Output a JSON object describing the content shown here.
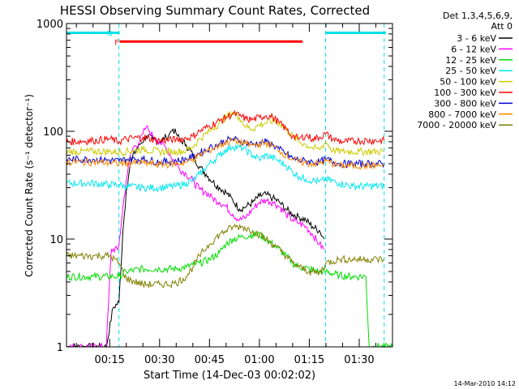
{
  "chart_data": {
    "type": "line",
    "title": "HESSI Observing Summary Count Rates, Corrected",
    "xlabel": "Start Time (14-Dec-03 00:02:02)",
    "ylabel": "Corrected Count Rate (s⁻¹ detector⁻¹)",
    "y_scale": "log",
    "ylim": [
      1,
      1000
    ],
    "xlim_minutes": [
      2.03,
      100
    ],
    "x_ticks": [
      {
        "label": "00:15",
        "value": 15
      },
      {
        "label": "00:30",
        "value": 30
      },
      {
        "label": "00:45",
        "value": 45
      },
      {
        "label": "01:00",
        "value": 60
      },
      {
        "label": "01:15",
        "value": 75
      },
      {
        "label": "01:30",
        "value": 90
      }
    ],
    "y_ticks": [
      {
        "label": "1",
        "value": 1
      },
      {
        "label": "10",
        "value": 10
      },
      {
        "label": "100",
        "value": 100
      },
      {
        "label": "1000",
        "value": 1000
      }
    ],
    "legend_header": [
      "Det 1,3,4,5,6,9,",
      "Att 0"
    ],
    "legend_position": "right",
    "grid": false,
    "timestamp": "14-Mar-2010 14:12",
    "flag_bars": [
      {
        "label": "",
        "color": "#00e0e8",
        "y": 820,
        "x": [
          2.03,
          16.0
        ]
      },
      {
        "label": "N",
        "color": "#00e0e8",
        "y": 820,
        "x": [
          16.0,
          18.0
        ]
      },
      {
        "label": "F",
        "color": "#ff0000",
        "y": 680,
        "x": [
          18.0,
          73.0
        ]
      },
      {
        "label": "",
        "color": "#00e0e8",
        "y": 820,
        "x": [
          80.0,
          98.0
        ]
      }
    ],
    "night_markers_minutes": [
      17.8,
      79.9,
      97.5
    ],
    "series": [
      {
        "name": "3 - 6 keV",
        "color": "#000000",
        "x": [
          2,
          14,
          16,
          17.8,
          19,
          20,
          21,
          22,
          24,
          26,
          28,
          30,
          32,
          33,
          34,
          35,
          36,
          38,
          40,
          42,
          44,
          46,
          48,
          50,
          52,
          54,
          56,
          58,
          60,
          62,
          64,
          66,
          68,
          70,
          72,
          74,
          76,
          78,
          79.5
        ],
        "y": [
          1,
          1,
          2.3,
          2.6,
          12,
          28,
          45,
          60,
          75,
          90,
          85,
          80,
          88,
          95,
          105,
          95,
          85,
          75,
          60,
          47,
          40,
          34,
          30,
          27,
          23,
          19,
          20,
          22,
          25,
          26,
          24,
          22,
          19,
          17,
          16,
          15,
          13,
          12,
          10
        ]
      },
      {
        "name": "6 - 12 keV",
        "color": "#ff00ff",
        "x": [
          2,
          14,
          15.5,
          17.5,
          18,
          19,
          20,
          21,
          22,
          24,
          25,
          26,
          27,
          28,
          29,
          30,
          32,
          34,
          36,
          38,
          40,
          42,
          44,
          46,
          48,
          50,
          52,
          54,
          56,
          58,
          60,
          62,
          64,
          66,
          68,
          70,
          72,
          74,
          76,
          78,
          79.5
        ],
        "y": [
          1,
          1,
          8,
          8,
          10,
          20,
          35,
          55,
          70,
          80,
          95,
          110,
          100,
          90,
          85,
          80,
          70,
          55,
          45,
          40,
          35,
          29,
          27,
          24,
          22,
          20,
          17,
          15,
          16,
          19,
          22,
          23,
          22,
          20,
          17,
          15,
          14,
          13,
          11,
          9,
          8
        ]
      },
      {
        "name": "12 - 25 keV",
        "color": "#00dd00",
        "x": [
          2,
          10,
          16,
          17.8,
          20,
          25,
          30,
          35,
          38,
          40,
          42,
          45,
          48,
          50,
          52,
          55,
          58,
          60,
          62,
          65,
          68,
          70,
          72,
          75,
          78,
          80,
          84,
          88,
          90,
          92,
          93,
          94,
          100
        ],
        "y": [
          4.5,
          4.5,
          4.5,
          4.5,
          5,
          5.3,
          5.3,
          5.3,
          5.5,
          5.8,
          6,
          6.5,
          7.5,
          9,
          10,
          10.5,
          11,
          11,
          10,
          8.5,
          7,
          6,
          5.5,
          5.3,
          5,
          5,
          4.6,
          4.5,
          4.5,
          4.5,
          1,
          1,
          1
        ]
      },
      {
        "name": "25 - 50 keV",
        "color": "#00e8f0",
        "x": [
          2,
          10,
          15,
          17.8,
          20,
          25,
          30,
          35,
          38,
          40,
          42,
          45,
          48,
          50,
          52,
          55,
          58,
          60,
          62,
          65,
          68,
          70,
          72,
          74,
          76,
          78,
          80,
          84,
          88,
          92,
          97.5
        ],
        "y": [
          33,
          33,
          32,
          32,
          31,
          30,
          30,
          31,
          33,
          35,
          40,
          50,
          60,
          68,
          72,
          70,
          60,
          55,
          60,
          55,
          48,
          42,
          38,
          36,
          35,
          34,
          36,
          33,
          31,
          31,
          31
        ]
      },
      {
        "name": "50 - 100 keV",
        "color": "#cccc00",
        "x": [
          2,
          10,
          15,
          17.8,
          20,
          25,
          30,
          35,
          38,
          40,
          42,
          45,
          48,
          50,
          52,
          54,
          56,
          58,
          60,
          62,
          64,
          66,
          68,
          70,
          72,
          74,
          76,
          78,
          80,
          82,
          85,
          90,
          97.5
        ],
        "y": [
          65,
          65,
          65,
          64,
          65,
          68,
          65,
          65,
          66,
          72,
          85,
          100,
          120,
          135,
          150,
          135,
          110,
          105,
          115,
          120,
          125,
          120,
          105,
          90,
          80,
          75,
          70,
          68,
          80,
          66,
          65,
          65,
          65
        ]
      },
      {
        "name": "100 - 300 keV",
        "color": "#ff0000",
        "x": [
          2,
          10,
          15,
          17.8,
          20,
          25,
          30,
          35,
          38,
          40,
          42,
          45,
          48,
          50,
          52,
          54,
          56,
          58,
          60,
          62,
          64,
          66,
          68,
          70,
          72,
          74,
          76,
          78,
          80,
          82,
          85,
          90,
          97.5
        ],
        "y": [
          80,
          82,
          85,
          80,
          85,
          88,
          82,
          84,
          86,
          90,
          100,
          112,
          125,
          135,
          145,
          140,
          130,
          128,
          135,
          140,
          135,
          120,
          105,
          90,
          85,
          92,
          85,
          88,
          95,
          85,
          80,
          82,
          82
        ]
      },
      {
        "name": "300 - 800 keV",
        "color": "#0000dd",
        "x": [
          2,
          10,
          15,
          17.8,
          20,
          25,
          30,
          35,
          38,
          40,
          42,
          45,
          48,
          50,
          52,
          54,
          56,
          58,
          60,
          62,
          64,
          66,
          68,
          70,
          72,
          74,
          76,
          78,
          80,
          84,
          88,
          92,
          97.5
        ],
        "y": [
          55,
          55,
          54,
          53,
          55,
          55,
          52,
          53,
          55,
          58,
          63,
          70,
          77,
          82,
          85,
          82,
          78,
          76,
          78,
          80,
          75,
          68,
          62,
          56,
          54,
          53,
          52,
          52,
          55,
          50,
          50,
          50,
          50
        ]
      },
      {
        "name": "800 - 7000 keV",
        "color": "#ff8800",
        "x": [
          2,
          10,
          15,
          17.8,
          20,
          25,
          30,
          35,
          38,
          40,
          42,
          45,
          48,
          50,
          52,
          54,
          56,
          58,
          60,
          62,
          64,
          66,
          68,
          70,
          72,
          74,
          76,
          78,
          80,
          84,
          88,
          92,
          97.5
        ],
        "y": [
          52,
          52,
          51,
          50,
          51,
          51,
          49,
          50,
          52,
          55,
          60,
          67,
          74,
          79,
          82,
          80,
          76,
          74,
          76,
          78,
          73,
          66,
          60,
          55,
          52,
          51,
          50,
          50,
          53,
          48,
          48,
          48,
          48
        ]
      },
      {
        "name": "7000 - 20000 keV",
        "color": "#808000",
        "x": [
          2,
          10,
          15,
          17.8,
          20,
          25,
          30,
          35,
          38,
          40,
          42,
          45,
          48,
          50,
          52,
          55,
          58,
          60,
          62,
          65,
          68,
          70,
          72,
          75,
          78,
          80,
          84,
          88,
          92,
          97.5
        ],
        "y": [
          7,
          7,
          7,
          6,
          4.3,
          3.8,
          3.8,
          3.9,
          4.5,
          5.5,
          7,
          9,
          11,
          12,
          13,
          13,
          12,
          11,
          10,
          8.5,
          7,
          6,
          5.5,
          5,
          4.8,
          6,
          6.5,
          6.5,
          6.5,
          6.5
        ]
      }
    ]
  }
}
